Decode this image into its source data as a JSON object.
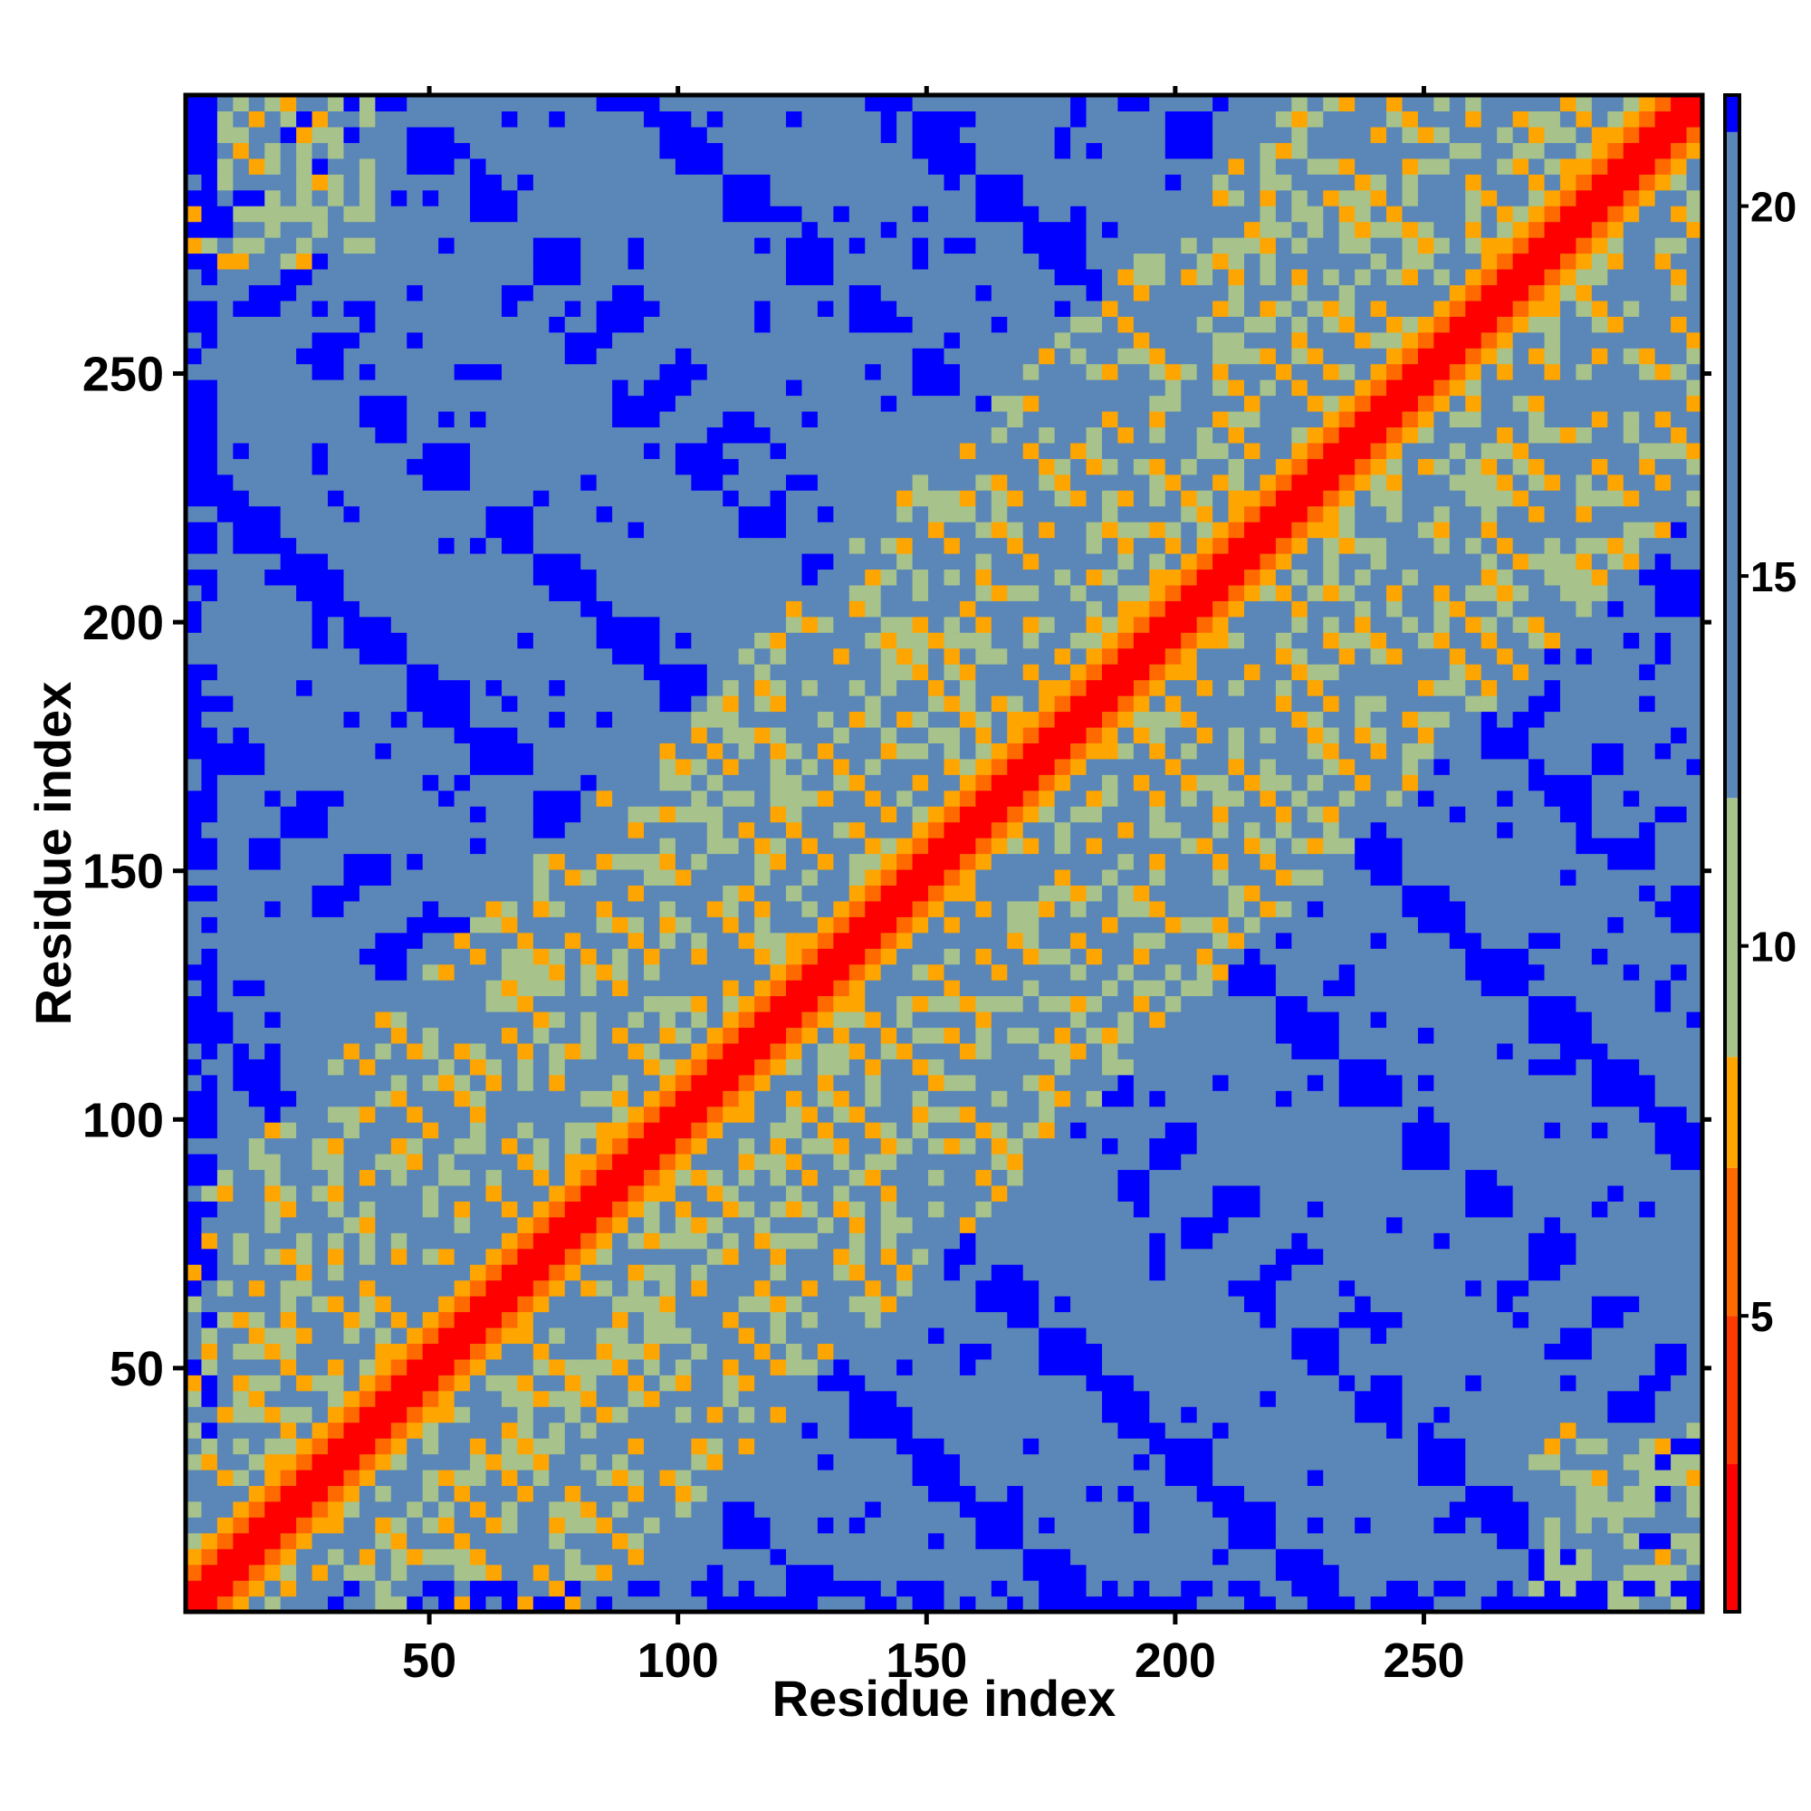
{
  "chart_data": {
    "type": "heatmap",
    "title": "",
    "xlabel": "Residue index",
    "ylabel": "Residue index",
    "xlim": [
      1,
      306
    ],
    "ylim": [
      1,
      306
    ],
    "x_ticks": [
      50,
      100,
      150,
      200,
      250
    ],
    "y_ticks": [
      50,
      100,
      150,
      200,
      250
    ],
    "colorbar": {
      "ticks": [
        5,
        10,
        15,
        20
      ],
      "range": [
        1,
        21.5
      ],
      "bands": [
        {
          "from": 1,
          "to": 3,
          "color": "#ff0000"
        },
        {
          "from": 3,
          "to": 5,
          "color": "#ff3a00"
        },
        {
          "from": 5,
          "to": 7,
          "color": "#ff6a00"
        },
        {
          "from": 7,
          "to": 8.5,
          "color": "#ffa500"
        },
        {
          "from": 8.5,
          "to": 12,
          "color": "#a7c28a"
        },
        {
          "from": 12,
          "to": 21,
          "color": "#5b87b8"
        },
        {
          "from": 21,
          "to": 21.5,
          "color": "#0000ff"
        }
      ]
    },
    "matrix_description_values": {
      "diagonal_distance": 2,
      "background_distance": 18,
      "far_contact_distance": 21.5
    },
    "colors": {
      "near": "#ff0000",
      "contact": "#ffa500",
      "medium": "#a7c28a",
      "background": "#5b87b8",
      "far": "#0000ff"
    }
  }
}
